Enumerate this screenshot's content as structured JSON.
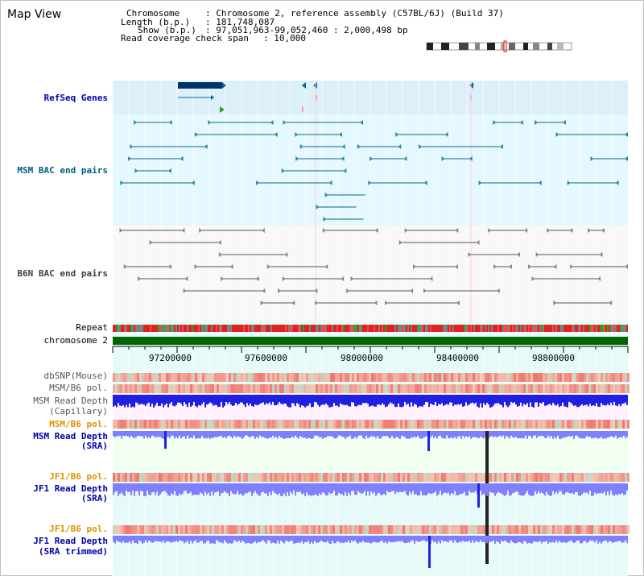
{
  "title": "Map View",
  "info": {
    "chromosome_key": "Chromosome",
    "chromosome_val": ": Chromosome 2, reference assembly (C57BL/6J) (Build 37)",
    "length_key": "Length (b.p.)",
    "length_val": ": 181,748,087",
    "show_key": "Show (b.p.)",
    "show_val": ": 97,051,963-99,052,460 : 2,000,498 bp",
    "span_key": "Read coverage check span",
    "span_val": ": 10,000"
  },
  "tracks": {
    "refseq": "RefSeq Genes",
    "msm_bac": "MSM BAC end pairs",
    "b6n_bac": "B6N BAC end pairs",
    "repeat": "Repeat",
    "chromosome": "chromosome 2",
    "dbsnp": "dbSNP(Mouse)",
    "msm_b6_pol_1": "MSM/B6 pol.",
    "msm_read_cap_1": "MSM Read Depth",
    "msm_read_cap_2": "(Capillary)",
    "msm_b6_pol_2": "MSM/B6 pol.",
    "msm_read_sra_1": "MSM Read Depth",
    "msm_read_sra_2": "(SRA)",
    "jf1_b6_pol_1": "JF1/B6 pol.",
    "jf1_read_sra_1": "JF1 Read Depth",
    "jf1_read_sra_2": "(SRA)",
    "jf1_b6_pol_2": "JF1/B6 pol.",
    "jf1_read_trim_1": "JF1 Read Depth",
    "jf1_read_trim_2": "(SRA trimmed)"
  },
  "axis_ticks": [
    "97200000",
    "97600000",
    "98000000",
    "98400000",
    "98800000"
  ],
  "colors": {
    "refseq_bg": "#dcf0fa",
    "msm_bg": "#e6f8ff",
    "b6n_bg": "#f8f8f8",
    "lower_bg": "#e6fafa",
    "cap_bg": "#fff0ff",
    "sra_bg": "#f0fff0",
    "chromosome_green": "#006600",
    "depth_blue": "#2020e0",
    "depth_light": "#8080ff"
  }
}
